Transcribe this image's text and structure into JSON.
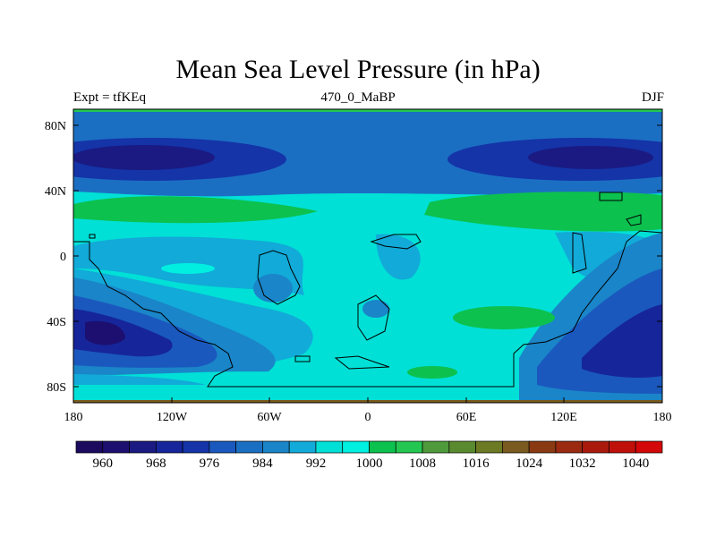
{
  "title": "Mean Sea Level Pressure (in hPa)",
  "subtitle_left": "Expt = tfKEq",
  "subtitle_center": "470_0_MaBP",
  "subtitle_right": "DJF",
  "y_ticks": [
    "80N",
    "40N",
    "0",
    "40S",
    "80S"
  ],
  "x_ticks": [
    "180",
    "120W",
    "60W",
    "0",
    "60E",
    "120E",
    "180"
  ],
  "colorbar": {
    "labels": [
      "960",
      "968",
      "976",
      "984",
      "992",
      "1000",
      "1008",
      "1016",
      "1024",
      "1032",
      "1040"
    ],
    "colors": [
      "#1c0a5e",
      "#1d0f6f",
      "#1a1a82",
      "#16259a",
      "#1434a8",
      "#1a58be",
      "#1b6fc3",
      "#1a85c8",
      "#12aad8",
      "#00e0d6",
      "#00efe0",
      "#0cc14e",
      "#23c751",
      "#4f9a3b",
      "#5a8a2f",
      "#6b7a23",
      "#7a5a1e",
      "#8a3a12",
      "#9a2a10",
      "#aa1a0c",
      "#c0100a",
      "#d40808"
    ]
  }
}
